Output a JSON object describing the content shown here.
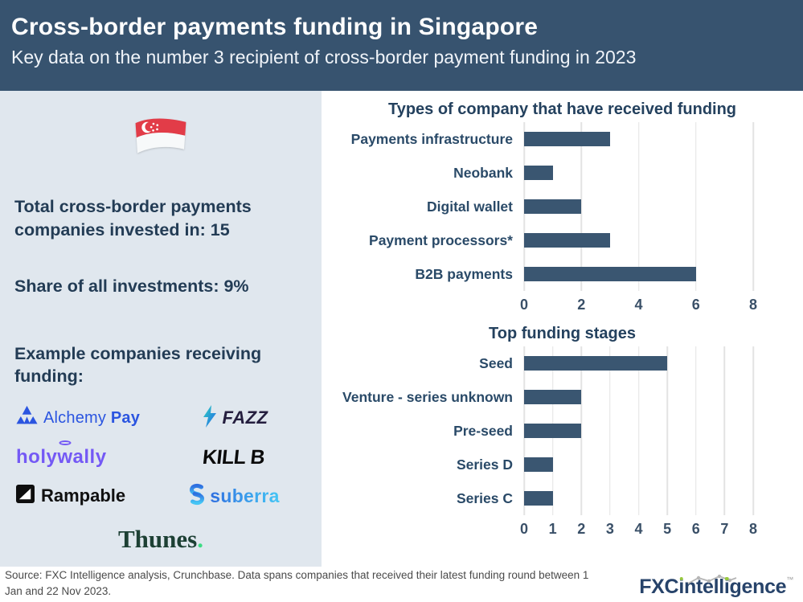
{
  "header": {
    "title": "Cross-border payments funding in Singapore",
    "subtitle": "Key data on the number 3 recipient of cross-border payment funding in 2023"
  },
  "left_panel": {
    "flag": "singapore-flag",
    "stat_total": "Total cross-border payments companies invested in: 15",
    "stat_share": "Share of all investments: 9%",
    "examples_heading": "Example companies receiving funding:",
    "logos": {
      "alchemy_name": "Alchemy ",
      "alchemy_pay": "Pay",
      "fazz": "FAZZ",
      "holywally_pre": "holy",
      "holywally_w": "w",
      "holywally_post": "ally",
      "killb": "KILL B",
      "rampable": "Rampable",
      "suberra": "suberra",
      "thunes": "Thunes",
      "thunes_dot": "."
    }
  },
  "chart_data": [
    {
      "type": "bar",
      "orientation": "horizontal",
      "title": "Types of company that have received funding",
      "categories": [
        "Payments infrastructure",
        "Neobank",
        "Digital wallet",
        "Payment processors*",
        "B2B payments"
      ],
      "values": [
        3,
        1,
        2,
        3,
        6
      ],
      "xlim": [
        0,
        8
      ],
      "xticks": [
        0,
        2,
        4,
        6,
        8
      ],
      "bar_color": "#3A5671",
      "grid": true,
      "legend": "none"
    },
    {
      "type": "bar",
      "orientation": "horizontal",
      "title": "Top funding stages",
      "categories": [
        "Seed",
        "Venture - series unknown",
        "Pre-seed",
        "Series D",
        "Series C"
      ],
      "values": [
        5,
        2,
        2,
        1,
        1
      ],
      "xlim": [
        0,
        8
      ],
      "xticks": [
        0,
        1,
        2,
        3,
        4,
        5,
        6,
        7,
        8
      ],
      "bar_color": "#3A5671",
      "grid": true,
      "legend": "none"
    }
  ],
  "footer": {
    "source": "Source: FXC Intelligence analysis, Crunchbase. Data spans companies that received their latest funding round between 1 Jan and 22 Nov 2023.",
    "logo": {
      "bold": "FXC",
      "p1": "i",
      "p2": "ntell",
      "p3": "i",
      "p4": "gence",
      "tm": "™"
    }
  },
  "colors": {
    "header_bg": "#37536F",
    "panel_bg": "#E0E7EE",
    "bar_color": "#3A5671",
    "gridline": "#E3E3E3",
    "ink": "#24415E",
    "flag_red": "#E23C48",
    "thunes_green": "#3DDC84",
    "fxc_navy": "#27436A",
    "fxc_green": "#97C93D"
  }
}
